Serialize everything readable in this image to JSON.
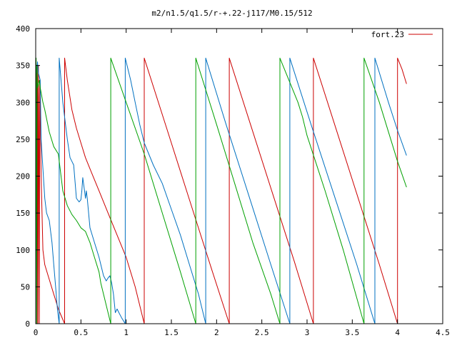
{
  "chart_data": {
    "type": "line",
    "title": "m2/n1.5/q1.5/r-+.22-j117/M0.15/512",
    "xlabel": "",
    "ylabel": "",
    "xlim": [
      0,
      4.5
    ],
    "ylim": [
      0,
      400
    ],
    "x_ticks": [
      0,
      0.5,
      1,
      1.5,
      2,
      2.5,
      3,
      3.5,
      4,
      4.5
    ],
    "x_tick_labels": [
      "0",
      "0.5",
      "1",
      "1.5",
      "2",
      "2.5",
      "3",
      "3.5",
      "4",
      "4.5"
    ],
    "y_ticks": [
      0,
      50,
      100,
      150,
      200,
      250,
      300,
      350,
      400
    ],
    "y_tick_labels": [
      "0",
      "50",
      "100",
      "150",
      "200",
      "250",
      "300",
      "350",
      "400"
    ],
    "grid": false,
    "legend": {
      "position": "top-right",
      "entries": [
        {
          "label": "fort.23",
          "color": "#cc0000"
        }
      ]
    },
    "series": [
      {
        "name": "fort.23",
        "color": "#cc0000",
        "points": [
          [
            0.0,
            355
          ],
          [
            0.01,
            340
          ],
          [
            0.015,
            0
          ],
          [
            0.018,
            350
          ],
          [
            0.022,
            300
          ],
          [
            0.025,
            0
          ],
          [
            0.03,
            350
          ],
          [
            0.035,
            250
          ],
          [
            0.04,
            0
          ],
          [
            0.045,
            330
          ],
          [
            0.06,
            200
          ],
          [
            0.08,
            100
          ],
          [
            0.1,
            80
          ],
          [
            0.15,
            60
          ],
          [
            0.2,
            40
          ],
          [
            0.25,
            20
          ],
          [
            0.32,
            0
          ],
          [
            0.32,
            360
          ],
          [
            0.35,
            330
          ],
          [
            0.4,
            290
          ],
          [
            0.45,
            265
          ],
          [
            0.5,
            245
          ],
          [
            0.55,
            225
          ],
          [
            0.6,
            210
          ],
          [
            0.7,
            180
          ],
          [
            0.8,
            150
          ],
          [
            0.9,
            120
          ],
          [
            1.0,
            90
          ],
          [
            1.1,
            50
          ],
          [
            1.2,
            0
          ],
          [
            1.2,
            360
          ],
          [
            1.45,
            264
          ],
          [
            1.7,
            168
          ],
          [
            1.95,
            72
          ],
          [
            2.14,
            0
          ],
          [
            2.14,
            360
          ],
          [
            2.38,
            268
          ],
          [
            2.62,
            176
          ],
          [
            2.86,
            84
          ],
          [
            3.07,
            0
          ],
          [
            3.07,
            360
          ],
          [
            3.3,
            272
          ],
          [
            3.55,
            176
          ],
          [
            3.8,
            80
          ],
          [
            4.0,
            0
          ],
          [
            4.0,
            180
          ],
          [
            4.0,
            360
          ],
          [
            4.05,
            345
          ],
          [
            4.1,
            325
          ]
        ]
      },
      {
        "color": "#0070c0",
        "points": [
          [
            0.0,
            360
          ],
          [
            0.01,
            340
          ],
          [
            0.02,
            355
          ],
          [
            0.03,
            340
          ],
          [
            0.05,
            330
          ],
          [
            0.06,
            250
          ],
          [
            0.08,
            210
          ],
          [
            0.1,
            170
          ],
          [
            0.12,
            150
          ],
          [
            0.15,
            140
          ],
          [
            0.18,
            110
          ],
          [
            0.2,
            80
          ],
          [
            0.22,
            50
          ],
          [
            0.24,
            20
          ],
          [
            0.26,
            0
          ],
          [
            0.26,
            360
          ],
          [
            0.28,
            330
          ],
          [
            0.3,
            300
          ],
          [
            0.32,
            280
          ],
          [
            0.35,
            250
          ],
          [
            0.38,
            225
          ],
          [
            0.4,
            220
          ],
          [
            0.42,
            215
          ],
          [
            0.45,
            170
          ],
          [
            0.48,
            165
          ],
          [
            0.5,
            168
          ],
          [
            0.51,
            180
          ],
          [
            0.52,
            198
          ],
          [
            0.54,
            180
          ],
          [
            0.55,
            170
          ],
          [
            0.56,
            180
          ],
          [
            0.57,
            170
          ],
          [
            0.6,
            130
          ],
          [
            0.65,
            110
          ],
          [
            0.7,
            90
          ],
          [
            0.75,
            65
          ],
          [
            0.78,
            58
          ],
          [
            0.8,
            62
          ],
          [
            0.82,
            65
          ],
          [
            0.84,
            55
          ],
          [
            0.86,
            40
          ],
          [
            0.88,
            15
          ],
          [
            0.9,
            20
          ],
          [
            0.92,
            15
          ],
          [
            0.95,
            8
          ],
          [
            0.99,
            0
          ],
          [
            0.99,
            360
          ],
          [
            1.05,
            330
          ],
          [
            1.1,
            300
          ],
          [
            1.15,
            270
          ],
          [
            1.2,
            245
          ],
          [
            1.3,
            215
          ],
          [
            1.4,
            190
          ],
          [
            1.5,
            155
          ],
          [
            1.6,
            120
          ],
          [
            1.7,
            80
          ],
          [
            1.8,
            40
          ],
          [
            1.88,
            0
          ],
          [
            1.88,
            360
          ],
          [
            2.1,
            272
          ],
          [
            2.35,
            176
          ],
          [
            2.6,
            80
          ],
          [
            2.81,
            0
          ],
          [
            2.81,
            360
          ],
          [
            3.05,
            268
          ],
          [
            3.3,
            174
          ],
          [
            3.55,
            80
          ],
          [
            3.75,
            0
          ],
          [
            3.75,
            360
          ],
          [
            3.9,
            300
          ],
          [
            4.0,
            262
          ],
          [
            4.1,
            228
          ]
        ]
      },
      {
        "color": "#00a000",
        "points": [
          [
            0.0,
            350
          ],
          [
            0.005,
            360
          ],
          [
            0.01,
            0
          ],
          [
            0.015,
            350
          ],
          [
            0.02,
            320
          ],
          [
            0.04,
            330
          ],
          [
            0.05,
            320
          ],
          [
            0.08,
            300
          ],
          [
            0.1,
            290
          ],
          [
            0.15,
            260
          ],
          [
            0.2,
            240
          ],
          [
            0.25,
            230
          ],
          [
            0.3,
            180
          ],
          [
            0.35,
            160
          ],
          [
            0.4,
            148
          ],
          [
            0.45,
            140
          ],
          [
            0.5,
            130
          ],
          [
            0.55,
            125
          ],
          [
            0.6,
            110
          ],
          [
            0.65,
            90
          ],
          [
            0.7,
            70
          ],
          [
            0.72,
            55
          ],
          [
            0.75,
            40
          ],
          [
            0.8,
            15
          ],
          [
            0.83,
            0
          ],
          [
            0.83,
            178
          ],
          [
            0.83,
            360
          ],
          [
            1.0,
            300
          ],
          [
            1.2,
            230
          ],
          [
            1.4,
            150
          ],
          [
            1.6,
            70
          ],
          [
            1.77,
            0
          ],
          [
            1.77,
            360
          ],
          [
            2.0,
            270
          ],
          [
            2.2,
            190
          ],
          [
            2.4,
            110
          ],
          [
            2.6,
            40
          ],
          [
            2.7,
            0
          ],
          [
            2.7,
            360
          ],
          [
            2.9,
            300
          ],
          [
            2.95,
            280
          ],
          [
            3.0,
            255
          ],
          [
            3.2,
            180
          ],
          [
            3.4,
            100
          ],
          [
            3.63,
            0
          ],
          [
            3.63,
            360
          ],
          [
            3.8,
            300
          ],
          [
            4.0,
            220
          ],
          [
            4.1,
            185
          ]
        ]
      }
    ]
  }
}
